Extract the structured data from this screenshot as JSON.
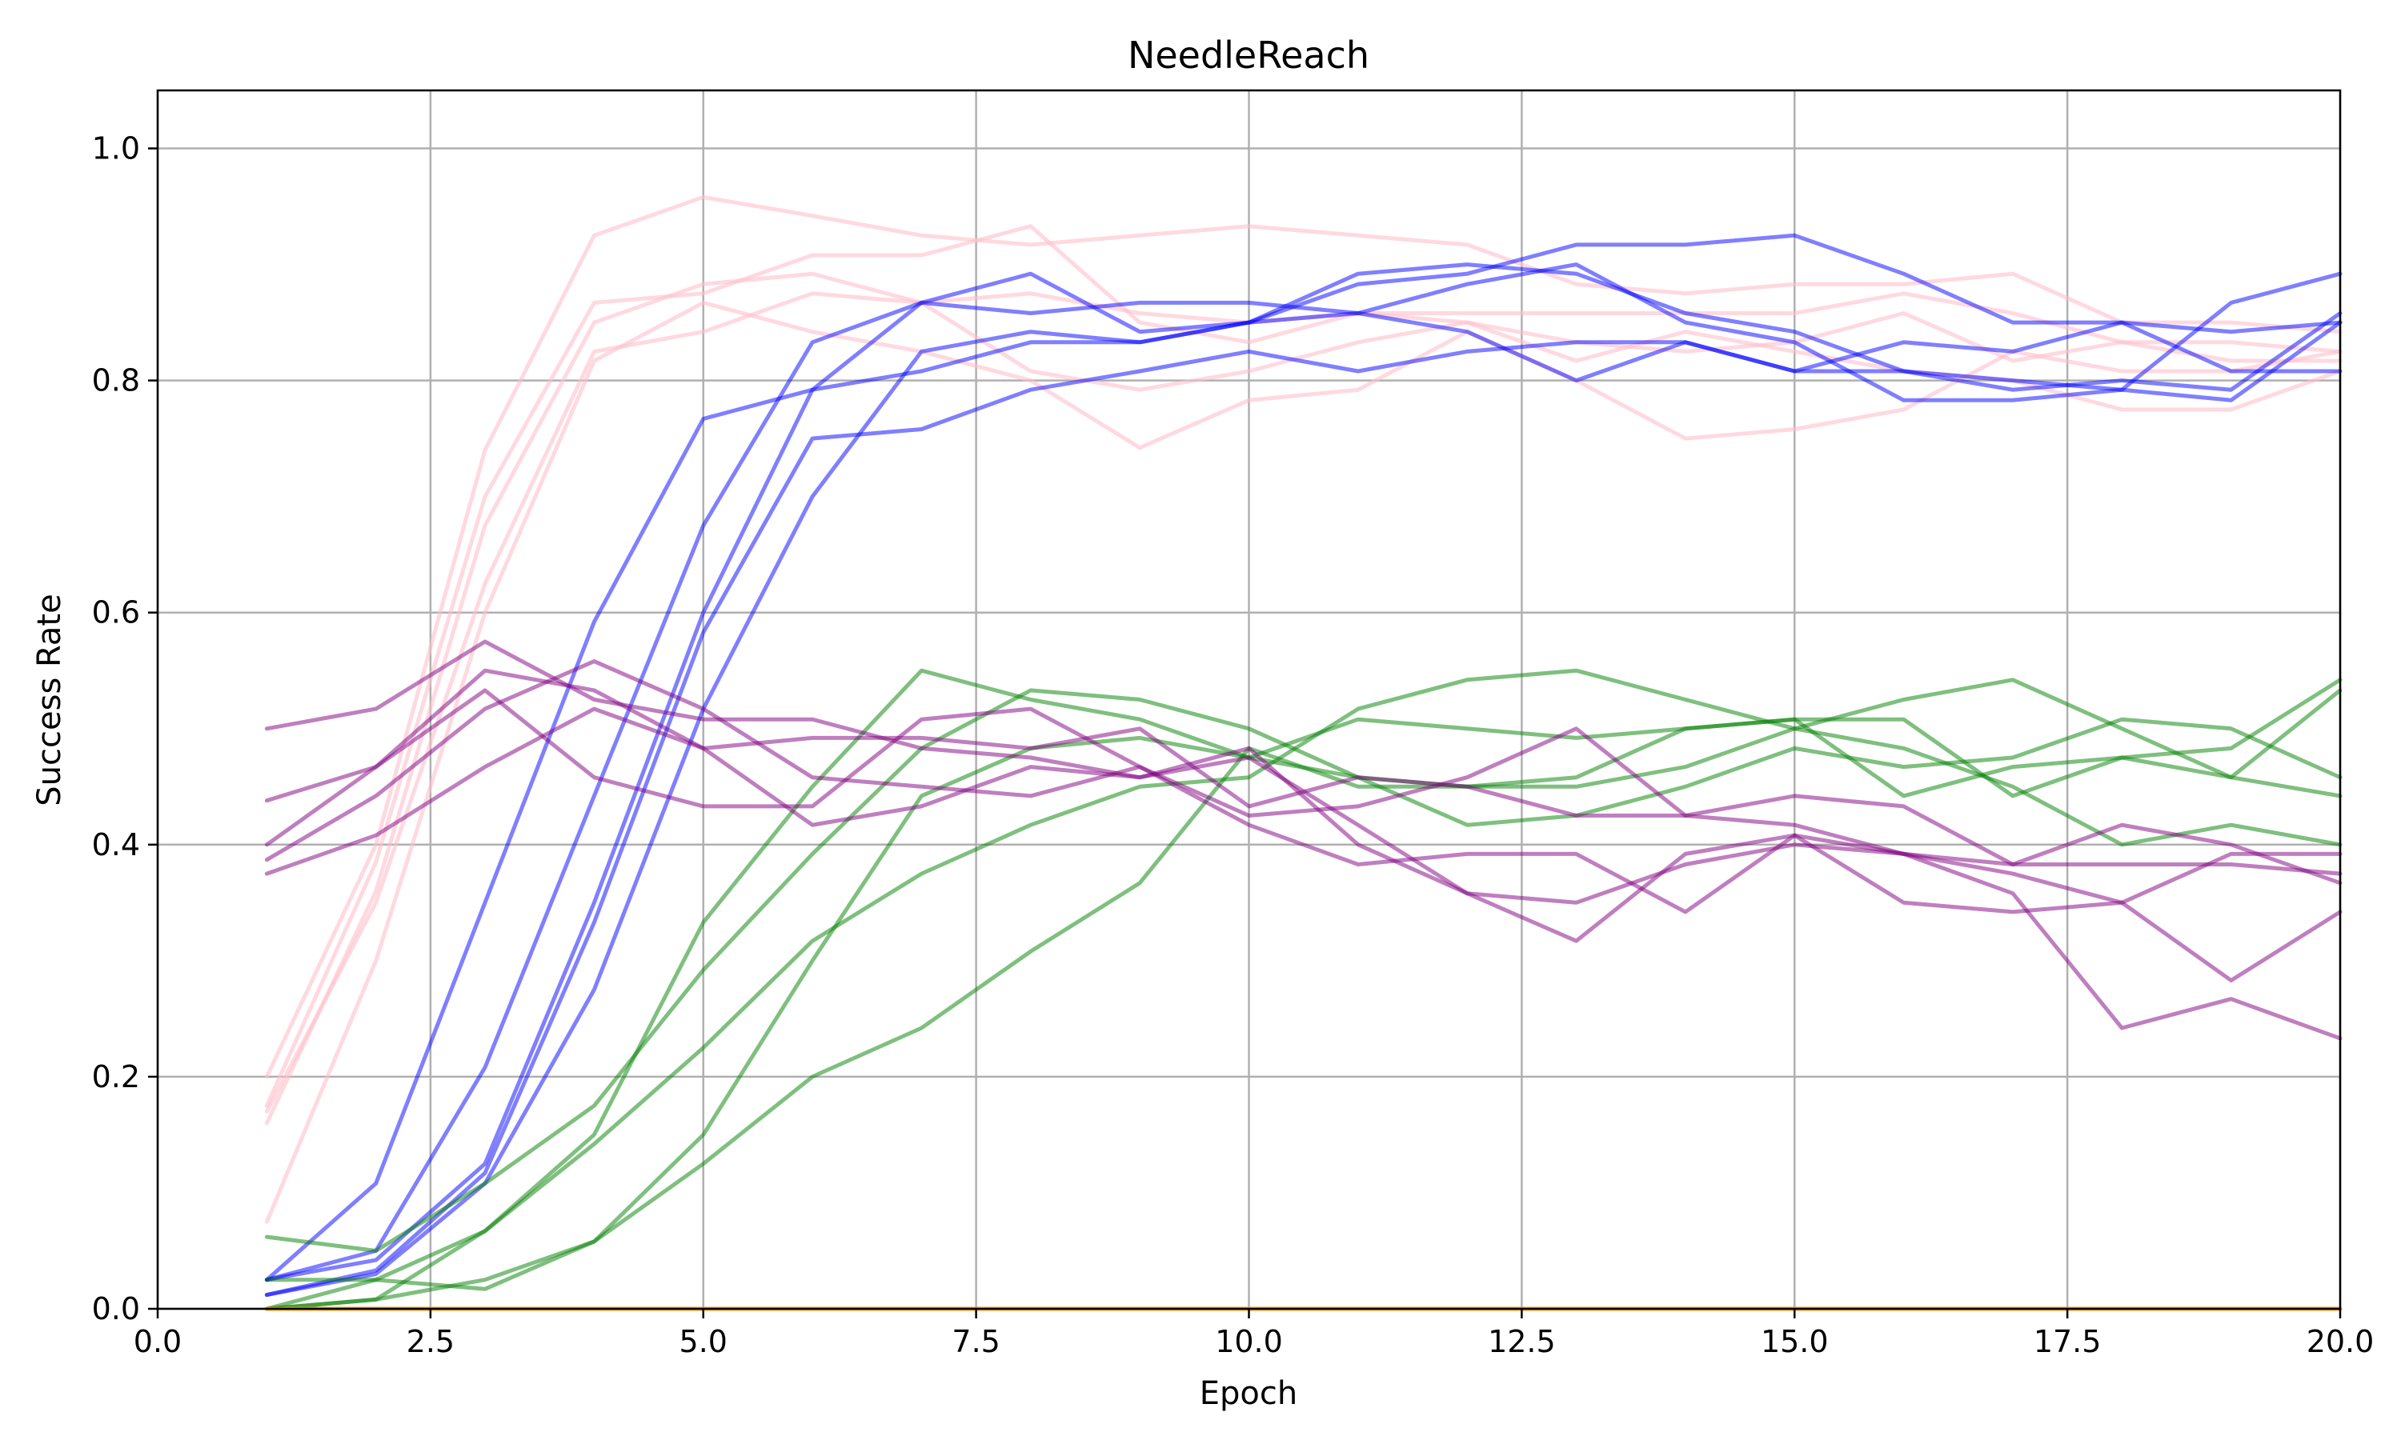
{
  "chart_data": {
    "type": "line",
    "title": "NeedleReach",
    "xlabel": "Epoch",
    "ylabel": "Success Rate",
    "xlim": [
      0,
      20
    ],
    "ylim": [
      0,
      1.05
    ],
    "xticks": [
      0,
      2.5,
      5,
      7.5,
      10,
      12.5,
      15,
      17.5,
      20
    ],
    "xtick_labels": [
      "0.0",
      "2.5",
      "5.0",
      "7.5",
      "10.0",
      "12.5",
      "15.0",
      "17.5",
      "20.0"
    ],
    "yticks": [
      0,
      0.2,
      0.4,
      0.6,
      0.8,
      1.0
    ],
    "ytick_labels": [
      "0.0",
      "0.2",
      "0.4",
      "0.6",
      "0.8",
      "1.0"
    ],
    "grid": true,
    "x": [
      1,
      2,
      3,
      4,
      5,
      6,
      7,
      8,
      9,
      10,
      11,
      12,
      13,
      14,
      15,
      16,
      17,
      18,
      19,
      20
    ],
    "series": [
      {
        "color": "#ffc0cb",
        "opacity": 0.6,
        "values": [
          0.2,
          0.4,
          0.74,
          0.925,
          0.958,
          0.942,
          0.925,
          0.917,
          0.925,
          0.933,
          0.925,
          0.917,
          0.883,
          0.875,
          0.883,
          0.883,
          0.892,
          0.85,
          0.85,
          0.842
        ]
      },
      {
        "color": "#ffc0cb",
        "opacity": 0.6,
        "values": [
          0.175,
          0.385,
          0.7,
          0.867,
          0.875,
          0.908,
          0.908,
          0.933,
          0.85,
          0.833,
          0.858,
          0.858,
          0.858,
          0.858,
          0.858,
          0.875,
          0.858,
          0.833,
          0.833,
          0.825
        ]
      },
      {
        "color": "#ffc0cb",
        "opacity": 0.6,
        "values": [
          0.16,
          0.36,
          0.675,
          0.85,
          0.883,
          0.892,
          0.867,
          0.875,
          0.858,
          0.85,
          0.858,
          0.85,
          0.833,
          0.825,
          0.833,
          0.858,
          0.817,
          0.833,
          0.817,
          0.817
        ]
      },
      {
        "color": "#ffc0cb",
        "opacity": 0.6,
        "values": [
          0.17,
          0.35,
          0.625,
          0.825,
          0.842,
          0.875,
          0.867,
          0.808,
          0.792,
          0.808,
          0.833,
          0.85,
          0.817,
          0.842,
          0.825,
          0.808,
          0.8,
          0.775,
          0.775,
          0.808
        ]
      },
      {
        "color": "#ffc0cb",
        "opacity": 0.6,
        "values": [
          0.075,
          0.3,
          0.6,
          0.817,
          0.867,
          0.842,
          0.825,
          0.8,
          0.742,
          0.783,
          0.792,
          0.842,
          0.8,
          0.75,
          0.758,
          0.775,
          0.825,
          0.808,
          0.808,
          0.825
        ]
      },
      {
        "color": "#0000ff",
        "opacity": 0.5,
        "values": [
          0.025,
          0.108,
          0.35,
          0.592,
          0.767,
          0.792,
          0.808,
          0.833,
          0.833,
          0.85,
          0.858,
          0.842,
          0.8,
          0.833,
          0.808,
          0.833,
          0.825,
          0.85,
          0.808,
          0.808
        ]
      },
      {
        "color": "#0000ff",
        "opacity": 0.5,
        "values": [
          0.025,
          0.05,
          0.208,
          0.442,
          0.675,
          0.833,
          0.867,
          0.858,
          0.867,
          0.867,
          0.858,
          0.883,
          0.9,
          0.85,
          0.833,
          0.783,
          0.783,
          0.792,
          0.867,
          0.892
        ]
      },
      {
        "color": "#0000ff",
        "opacity": 0.5,
        "values": [
          0.025,
          0.042,
          0.125,
          0.35,
          0.6,
          0.792,
          0.867,
          0.892,
          0.842,
          0.85,
          0.892,
          0.9,
          0.892,
          0.858,
          0.842,
          0.808,
          0.792,
          0.8,
          0.792,
          0.858
        ]
      },
      {
        "color": "#0000ff",
        "opacity": 0.5,
        "values": [
          0.012,
          0.033,
          0.117,
          0.333,
          0.583,
          0.75,
          0.758,
          0.792,
          0.808,
          0.825,
          0.808,
          0.825,
          0.833,
          0.833,
          0.808,
          0.808,
          0.8,
          0.792,
          0.783,
          0.85
        ]
      },
      {
        "color": "#0000ff",
        "opacity": 0.5,
        "values": [
          0.012,
          0.03,
          0.108,
          0.275,
          0.517,
          0.7,
          0.825,
          0.842,
          0.833,
          0.85,
          0.883,
          0.892,
          0.917,
          0.917,
          0.925,
          0.892,
          0.85,
          0.85,
          0.842,
          0.85
        ]
      },
      {
        "color": "#008000",
        "opacity": 0.5,
        "values": [
          0.062,
          0.05,
          0.108,
          0.175,
          0.292,
          0.392,
          0.483,
          0.533,
          0.525,
          0.5,
          0.458,
          0.417,
          0.425,
          0.45,
          0.483,
          0.467,
          0.475,
          0.508,
          0.5,
          0.458
        ]
      },
      {
        "color": "#008000",
        "opacity": 0.5,
        "values": [
          0.025,
          0.025,
          0.017,
          0.058,
          0.15,
          0.3,
          0.442,
          0.483,
          0.492,
          0.475,
          0.508,
          0.5,
          0.492,
          0.5,
          0.508,
          0.508,
          0.442,
          0.475,
          0.483,
          0.542
        ]
      },
      {
        "color": "#008000",
        "opacity": 0.5,
        "values": [
          0.0,
          0.008,
          0.067,
          0.15,
          0.333,
          0.45,
          0.55,
          0.525,
          0.508,
          0.475,
          0.458,
          0.45,
          0.45,
          0.467,
          0.5,
          0.525,
          0.542,
          0.5,
          0.458,
          0.533
        ]
      },
      {
        "color": "#008000",
        "opacity": 0.5,
        "values": [
          0.0,
          0.025,
          0.067,
          0.142,
          0.225,
          0.317,
          0.375,
          0.417,
          0.45,
          0.458,
          0.517,
          0.542,
          0.55,
          0.525,
          0.5,
          0.483,
          0.45,
          0.4,
          0.417,
          0.4
        ]
      },
      {
        "color": "#008000",
        "opacity": 0.5,
        "values": [
          0.0,
          0.008,
          0.025,
          0.058,
          0.125,
          0.2,
          0.242,
          0.308,
          0.367,
          0.483,
          0.45,
          0.45,
          0.458,
          0.5,
          0.508,
          0.442,
          0.467,
          0.475,
          0.458,
          0.442
        ]
      },
      {
        "color": "#800080",
        "opacity": 0.5,
        "values": [
          0.5,
          0.517,
          0.575,
          0.525,
          0.508,
          0.508,
          0.483,
          0.475,
          0.458,
          0.483,
          0.4,
          0.358,
          0.35,
          0.383,
          0.4,
          0.392,
          0.383,
          0.383,
          0.383,
          0.375
        ]
      },
      {
        "color": "#800080",
        "opacity": 0.5,
        "values": [
          0.438,
          0.467,
          0.55,
          0.533,
          0.483,
          0.492,
          0.492,
          0.483,
          0.5,
          0.433,
          0.458,
          0.45,
          0.425,
          0.425,
          0.417,
          0.392,
          0.358,
          0.242,
          0.267,
          0.233
        ]
      },
      {
        "color": "#800080",
        "opacity": 0.5,
        "values": [
          0.4,
          0.467,
          0.533,
          0.458,
          0.433,
          0.433,
          0.508,
          0.517,
          0.467,
          0.417,
          0.383,
          0.392,
          0.392,
          0.342,
          0.408,
          0.35,
          0.342,
          0.35,
          0.392,
          0.392
        ]
      },
      {
        "color": "#800080",
        "opacity": 0.5,
        "values": [
          0.387,
          0.442,
          0.517,
          0.558,
          0.517,
          0.458,
          0.45,
          0.442,
          0.467,
          0.425,
          0.433,
          0.458,
          0.5,
          0.425,
          0.442,
          0.433,
          0.383,
          0.417,
          0.4,
          0.367
        ]
      },
      {
        "color": "#800080",
        "opacity": 0.5,
        "values": [
          0.375,
          0.408,
          0.467,
          0.517,
          0.483,
          0.417,
          0.433,
          0.467,
          0.458,
          0.475,
          0.417,
          0.358,
          0.317,
          0.392,
          0.408,
          0.392,
          0.375,
          0.35,
          0.283,
          0.342
        ]
      },
      {
        "color": "#ff8c00",
        "opacity": 0.9,
        "values": [
          0,
          0,
          0,
          0,
          0,
          0,
          0,
          0,
          0,
          0,
          0,
          0,
          0,
          0,
          0,
          0,
          0,
          0,
          0,
          0
        ]
      }
    ]
  }
}
